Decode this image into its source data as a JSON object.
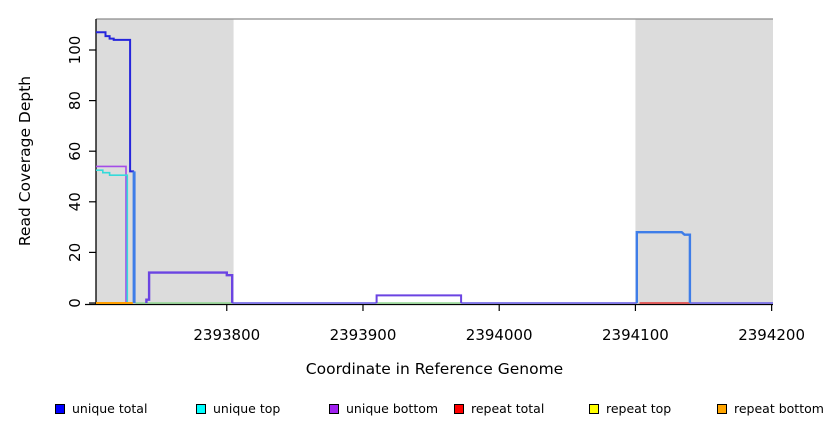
{
  "chart_data": {
    "type": "line",
    "title": "",
    "xlabel": "Coordinate in Reference Genome",
    "ylabel": "Read Coverage Depth",
    "xlim": [
      2393704,
      2394201
    ],
    "ylim": [
      0,
      113
    ],
    "x_ticks": [
      2393800,
      2393900,
      2394000,
      2394100,
      2394200
    ],
    "y_ticks": [
      0,
      20,
      40,
      60,
      80,
      100
    ],
    "grid": false,
    "masked_regions": [
      [
        2393704,
        2393805
      ],
      [
        2394100,
        2394201
      ]
    ],
    "mask_color": "#DCDCDC",
    "mask_top_border_color": "#8C8C8C",
    "series": [
      {
        "name": "baseline-green-left",
        "color": "#90D890",
        "width": 1.6,
        "points": [
          [
            2393733,
            0
          ],
          [
            2393804,
            0
          ]
        ]
      },
      {
        "name": "baseline-green-mid",
        "color": "#90D890",
        "width": 1.6,
        "points": [
          [
            2393910,
            0
          ],
          [
            2393972,
            0
          ]
        ]
      },
      {
        "name": "baseline-slate-1",
        "color": "#7A6FE8",
        "width": 1.8,
        "points": [
          [
            2393804,
            0
          ],
          [
            2393910,
            0
          ]
        ]
      },
      {
        "name": "baseline-slate-2",
        "color": "#7A6FE8",
        "width": 1.8,
        "points": [
          [
            2393972,
            0
          ],
          [
            2394101,
            0
          ]
        ]
      },
      {
        "name": "baseline-slate-3",
        "color": "#7A6FE8",
        "width": 1.8,
        "points": [
          [
            2394140,
            0
          ],
          [
            2394201,
            0
          ]
        ]
      },
      {
        "name": "repeat-total-right",
        "color": "#E34F4F",
        "width": 1.8,
        "points": [
          [
            2394103,
            0
          ],
          [
            2394140,
            0
          ]
        ]
      },
      {
        "name": "unique-bottom-left",
        "color": "#A44CE8",
        "width": 1.6,
        "points": [
          [
            2393704,
            54
          ],
          [
            2393726,
            54
          ],
          [
            2393726,
            0
          ]
        ]
      },
      {
        "name": "unique-top-left",
        "color": "#35DADA",
        "width": 1.6,
        "points": [
          [
            2393704,
            52.5
          ],
          [
            2393709,
            52.5
          ],
          [
            2393709,
            51.5
          ],
          [
            2393714,
            51.5
          ],
          [
            2393714,
            50.5
          ],
          [
            2393727,
            50.5
          ],
          [
            2393727,
            0
          ]
        ]
      },
      {
        "name": "unique-total-left",
        "color": "#2525DC",
        "width": 2.0,
        "points": [
          [
            2393704,
            107
          ],
          [
            2393711,
            107
          ],
          [
            2393711,
            105.5
          ],
          [
            2393714,
            105.5
          ],
          [
            2393714,
            104.5
          ],
          [
            2393717,
            104.5
          ],
          [
            2393717,
            104
          ],
          [
            2393729,
            104
          ],
          [
            2393729,
            52
          ],
          [
            2393732,
            52
          ]
        ]
      },
      {
        "name": "unique-total-left-drop",
        "color": "#3E7DE8",
        "width": 3.0,
        "points": [
          [
            2393732,
            52
          ],
          [
            2393732,
            0
          ]
        ]
      },
      {
        "name": "repeat-bottom-left",
        "color": "#FF9E00",
        "width": 2.0,
        "points": [
          [
            2393704,
            0
          ],
          [
            2393731,
            0
          ]
        ]
      },
      {
        "name": "unique-bottom-box",
        "color": "#6B44E2",
        "width": 2.4,
        "points": [
          [
            2393741,
            0
          ],
          [
            2393741,
            1.3
          ],
          [
            2393743,
            1.3
          ],
          [
            2393743,
            12
          ],
          [
            2393800,
            12
          ],
          [
            2393800,
            11
          ],
          [
            2393804,
            11
          ],
          [
            2393804,
            0
          ]
        ]
      },
      {
        "name": "unique-bottom-bump",
        "color": "#6B44E2",
        "width": 2.0,
        "points": [
          [
            2393910,
            0
          ],
          [
            2393910,
            3
          ],
          [
            2393972,
            3
          ],
          [
            2393972,
            0
          ]
        ]
      },
      {
        "name": "unique-total-box",
        "color": "#3E7DE8",
        "width": 2.4,
        "points": [
          [
            2394101,
            0
          ],
          [
            2394101,
            28
          ],
          [
            2394134,
            28
          ],
          [
            2394136,
            27
          ],
          [
            2394140,
            27
          ],
          [
            2394140,
            0
          ]
        ]
      }
    ]
  },
  "legend": {
    "position": "bottom",
    "x_positions": [
      55,
      196,
      329,
      454,
      589,
      717
    ],
    "items": [
      {
        "label": "unique total",
        "color": "#0000FF"
      },
      {
        "label": "unique top",
        "color": "#00FFFF"
      },
      {
        "label": "unique bottom",
        "color": "#A020F0"
      },
      {
        "label": "repeat total",
        "color": "#FF0000"
      },
      {
        "label": "repeat top",
        "color": "#FFFF00"
      },
      {
        "label": "repeat bottom",
        "color": "#FFA500"
      }
    ]
  },
  "colors": {
    "background": "#FFFFFF",
    "axis": "#000000",
    "tick_label": "#000000"
  }
}
